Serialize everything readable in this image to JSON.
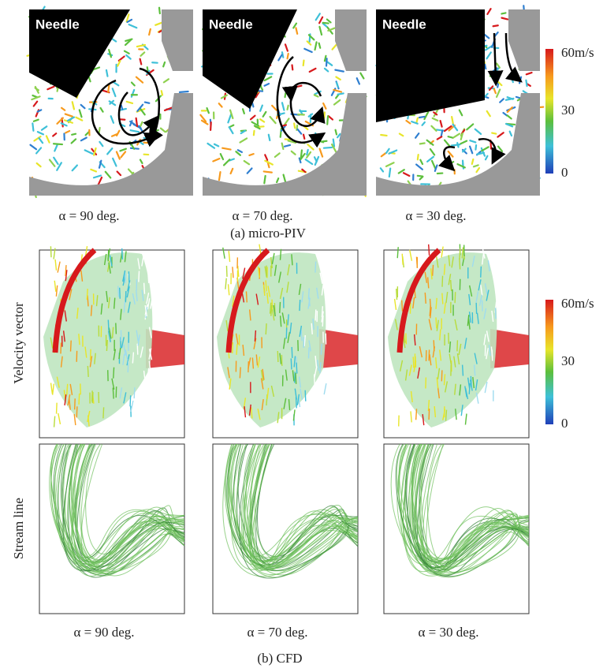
{
  "micro_piv": {
    "panels": [
      {
        "label": "Needle",
        "caption": "α = 90 deg."
      },
      {
        "label": "Needle",
        "caption": "α = 70 deg."
      },
      {
        "label": "Needle",
        "caption": "α = 30 deg."
      }
    ],
    "caption": "(a) micro-PIV",
    "colorbar": {
      "ticks": [
        "60m/s",
        "30",
        "0"
      ]
    }
  },
  "cfd": {
    "row_labels": [
      "Velocity vector",
      "Stream line"
    ],
    "captions": [
      "α = 90 deg.",
      "α = 70 deg.",
      "α = 30 deg."
    ],
    "caption": "(b) CFD",
    "colorbar": {
      "ticks": [
        "60m/s",
        "30",
        "0"
      ]
    }
  }
}
